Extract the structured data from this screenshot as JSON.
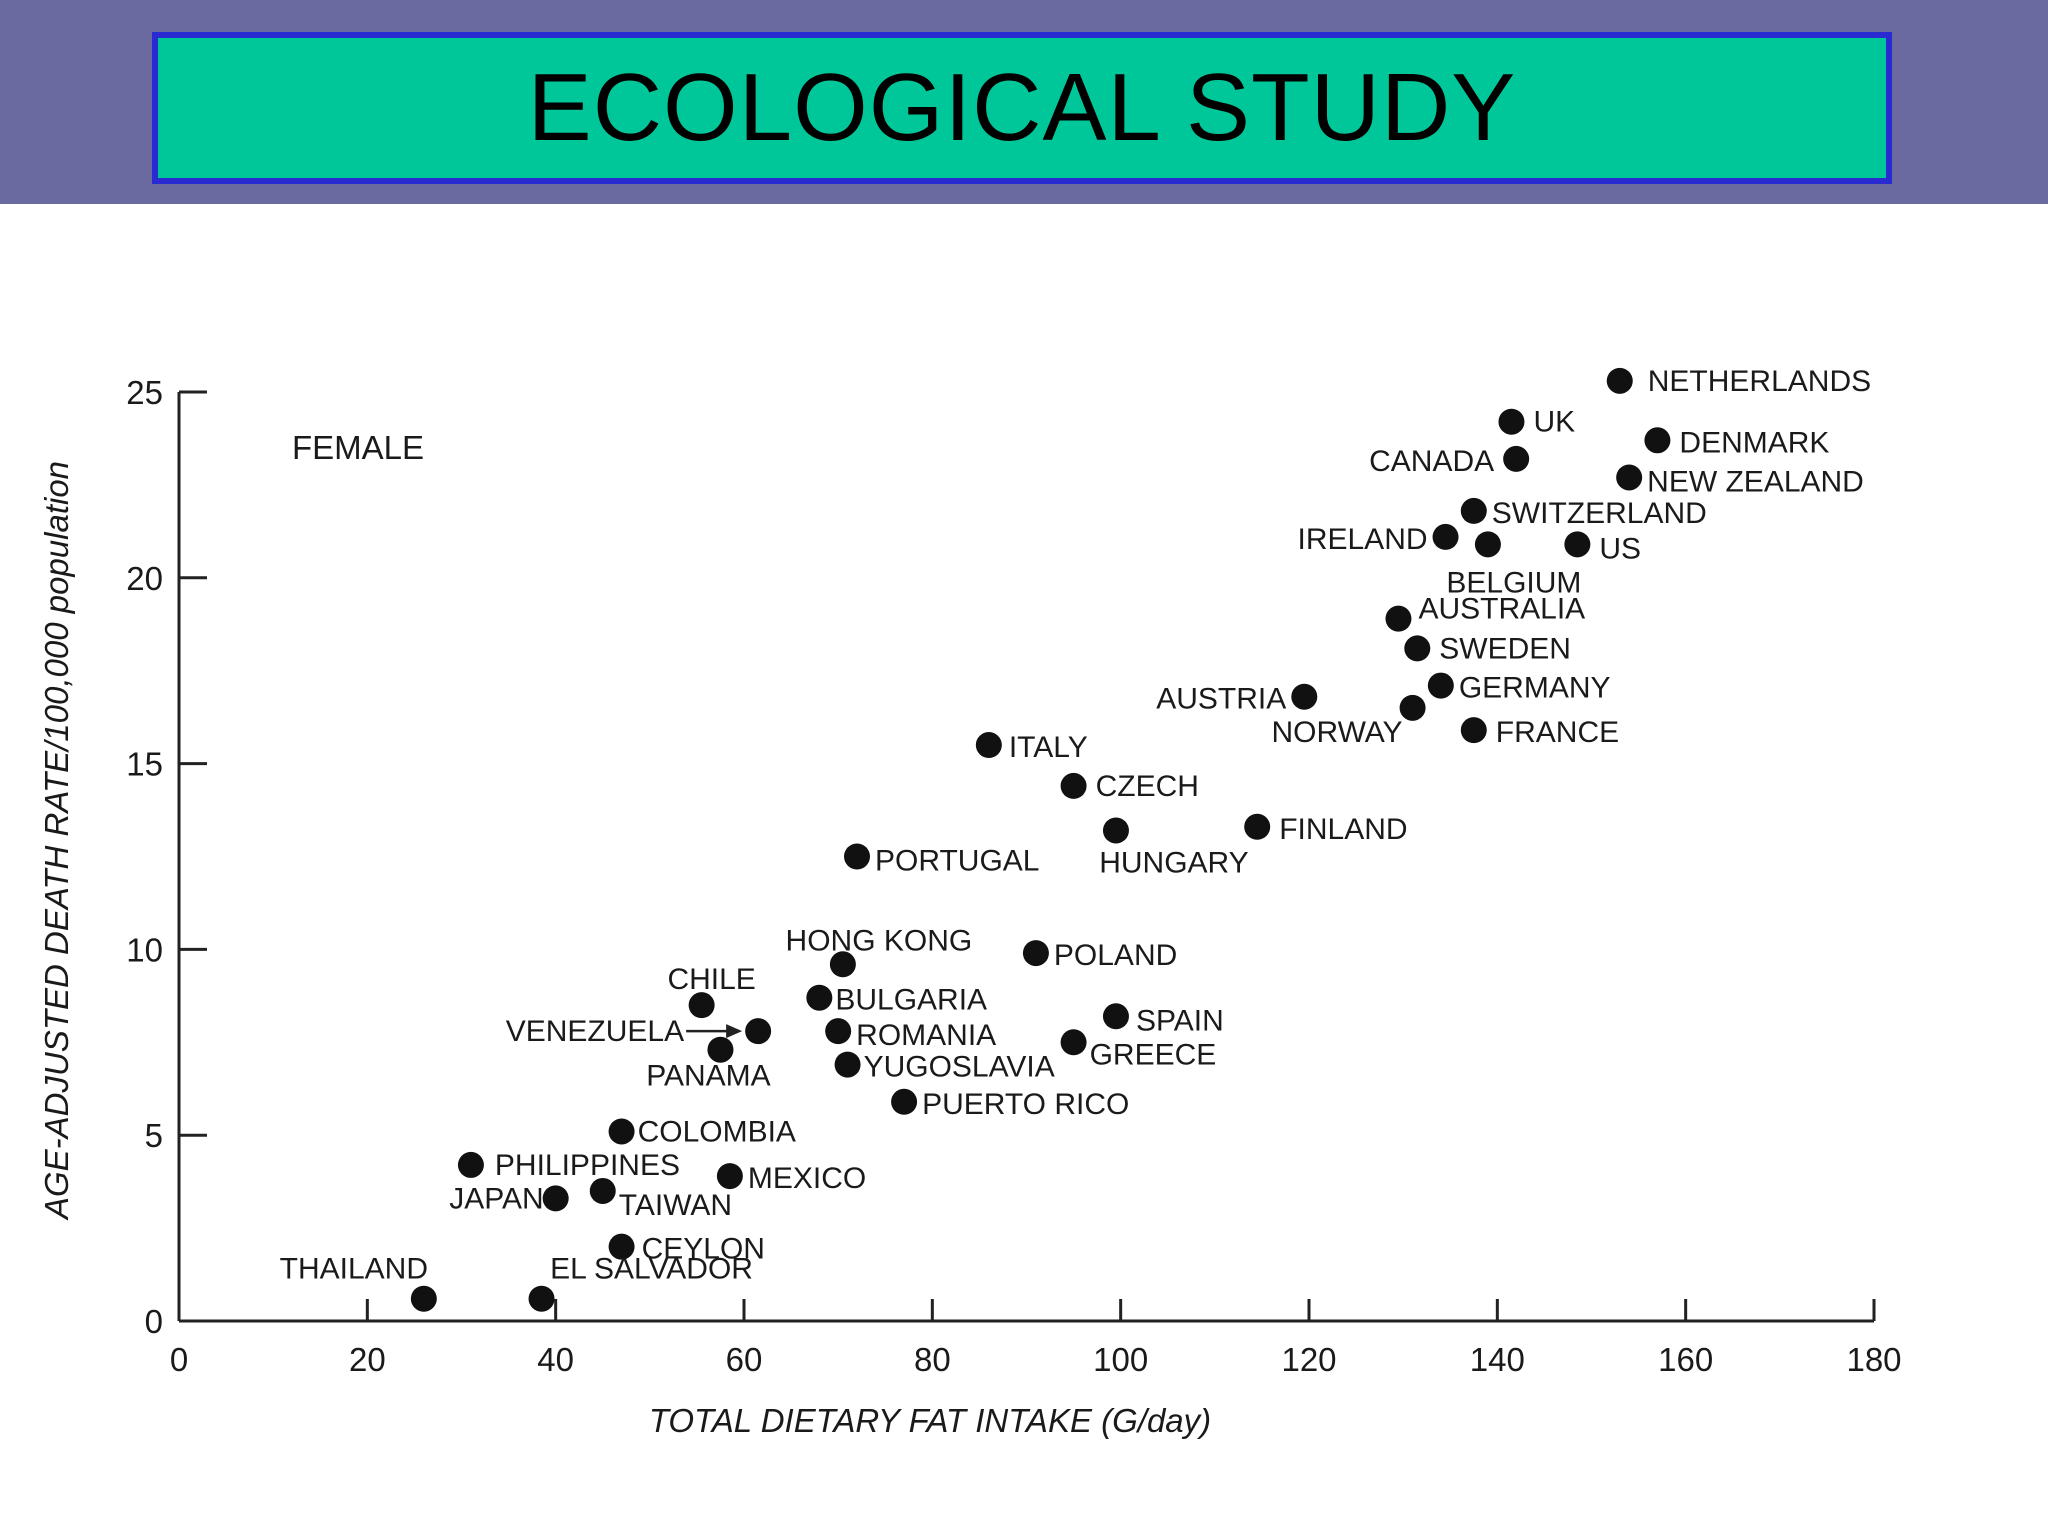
{
  "title": "ECOLOGICAL STUDY",
  "colors": {
    "header_band": "#6a6aa0",
    "title_fill": "#00c79a",
    "title_border": "#2a2ad2",
    "marker": "#111111"
  },
  "chart_data": {
    "type": "scatter",
    "panel_label": "FEMALE",
    "xlabel": "TOTAL DIETARY FAT INTAKE (G/day)",
    "ylabel": "AGE-ADJUSTED DEATH RATE/100,000 population",
    "xlim": [
      0,
      180
    ],
    "ylim": [
      0,
      25
    ],
    "xticks": [
      0,
      20,
      40,
      60,
      80,
      100,
      120,
      140,
      160,
      180
    ],
    "yticks": [
      0,
      5,
      10,
      15,
      20,
      25
    ],
    "grid": false,
    "points": [
      {
        "label": "NETHERLANDS",
        "x": 153,
        "y": 25.3
      },
      {
        "label": "UK",
        "x": 141.5,
        "y": 24.2
      },
      {
        "label": "DENMARK",
        "x": 157,
        "y": 23.7
      },
      {
        "label": "CANADA",
        "x": 142,
        "y": 23.2
      },
      {
        "label": "NEW ZEALAND",
        "x": 154,
        "y": 22.7
      },
      {
        "label": "SWITZERLAND",
        "x": 137.5,
        "y": 21.8
      },
      {
        "label": "IRELAND",
        "x": 134.5,
        "y": 21.1
      },
      {
        "label": "BELGIUM",
        "x": 139,
        "y": 20.9
      },
      {
        "label": "US",
        "x": 148.5,
        "y": 20.9
      },
      {
        "label": "AUSTRALIA",
        "x": 129.5,
        "y": 18.9
      },
      {
        "label": "SWEDEN",
        "x": 131.5,
        "y": 18.1
      },
      {
        "label": "GERMANY",
        "x": 134,
        "y": 17.1
      },
      {
        "label": "AUSTRIA",
        "x": 119.5,
        "y": 16.8
      },
      {
        "label": "NORWAY",
        "x": 131,
        "y": 16.5
      },
      {
        "label": "FRANCE",
        "x": 137.5,
        "y": 15.9
      },
      {
        "label": "ITALY",
        "x": 86,
        "y": 15.5
      },
      {
        "label": "CZECH",
        "x": 95,
        "y": 14.4
      },
      {
        "label": "FINLAND",
        "x": 114.5,
        "y": 13.3
      },
      {
        "label": "HUNGARY",
        "x": 99.5,
        "y": 13.2
      },
      {
        "label": "PORTUGAL",
        "x": 72,
        "y": 12.5
      },
      {
        "label": "POLAND",
        "x": 91,
        "y": 9.9
      },
      {
        "label": "HONG KONG",
        "x": 70.5,
        "y": 9.6
      },
      {
        "label": "BULGARIA",
        "x": 68,
        "y": 8.7
      },
      {
        "label": "CHILE",
        "x": 55.5,
        "y": 8.5
      },
      {
        "label": "SPAIN",
        "x": 99.5,
        "y": 8.2
      },
      {
        "label": "VENEZUELA",
        "x": 61.5,
        "y": 7.8
      },
      {
        "label": "ROMANIA",
        "x": 70,
        "y": 7.8
      },
      {
        "label": "GREECE",
        "x": 95,
        "y": 7.5
      },
      {
        "label": "PANAMA",
        "x": 57.5,
        "y": 7.3
      },
      {
        "label": "YUGOSLAVIA",
        "x": 71,
        "y": 6.9
      },
      {
        "label": "PUERTO RICO",
        "x": 77,
        "y": 5.9
      },
      {
        "label": "COLOMBIA",
        "x": 47,
        "y": 5.1
      },
      {
        "label": "PHILIPPINES",
        "x": 31,
        "y": 4.2
      },
      {
        "label": "MEXICO",
        "x": 58.5,
        "y": 3.9
      },
      {
        "label": "TAIWAN",
        "x": 45,
        "y": 3.5
      },
      {
        "label": "JAPAN",
        "x": 40,
        "y": 3.3
      },
      {
        "label": "CEYLON",
        "x": 47,
        "y": 2.0
      },
      {
        "label": "THAILAND",
        "x": 26,
        "y": 0.6
      },
      {
        "label": "EL SALVADOR",
        "x": 38.5,
        "y": 0.6
      }
    ]
  }
}
